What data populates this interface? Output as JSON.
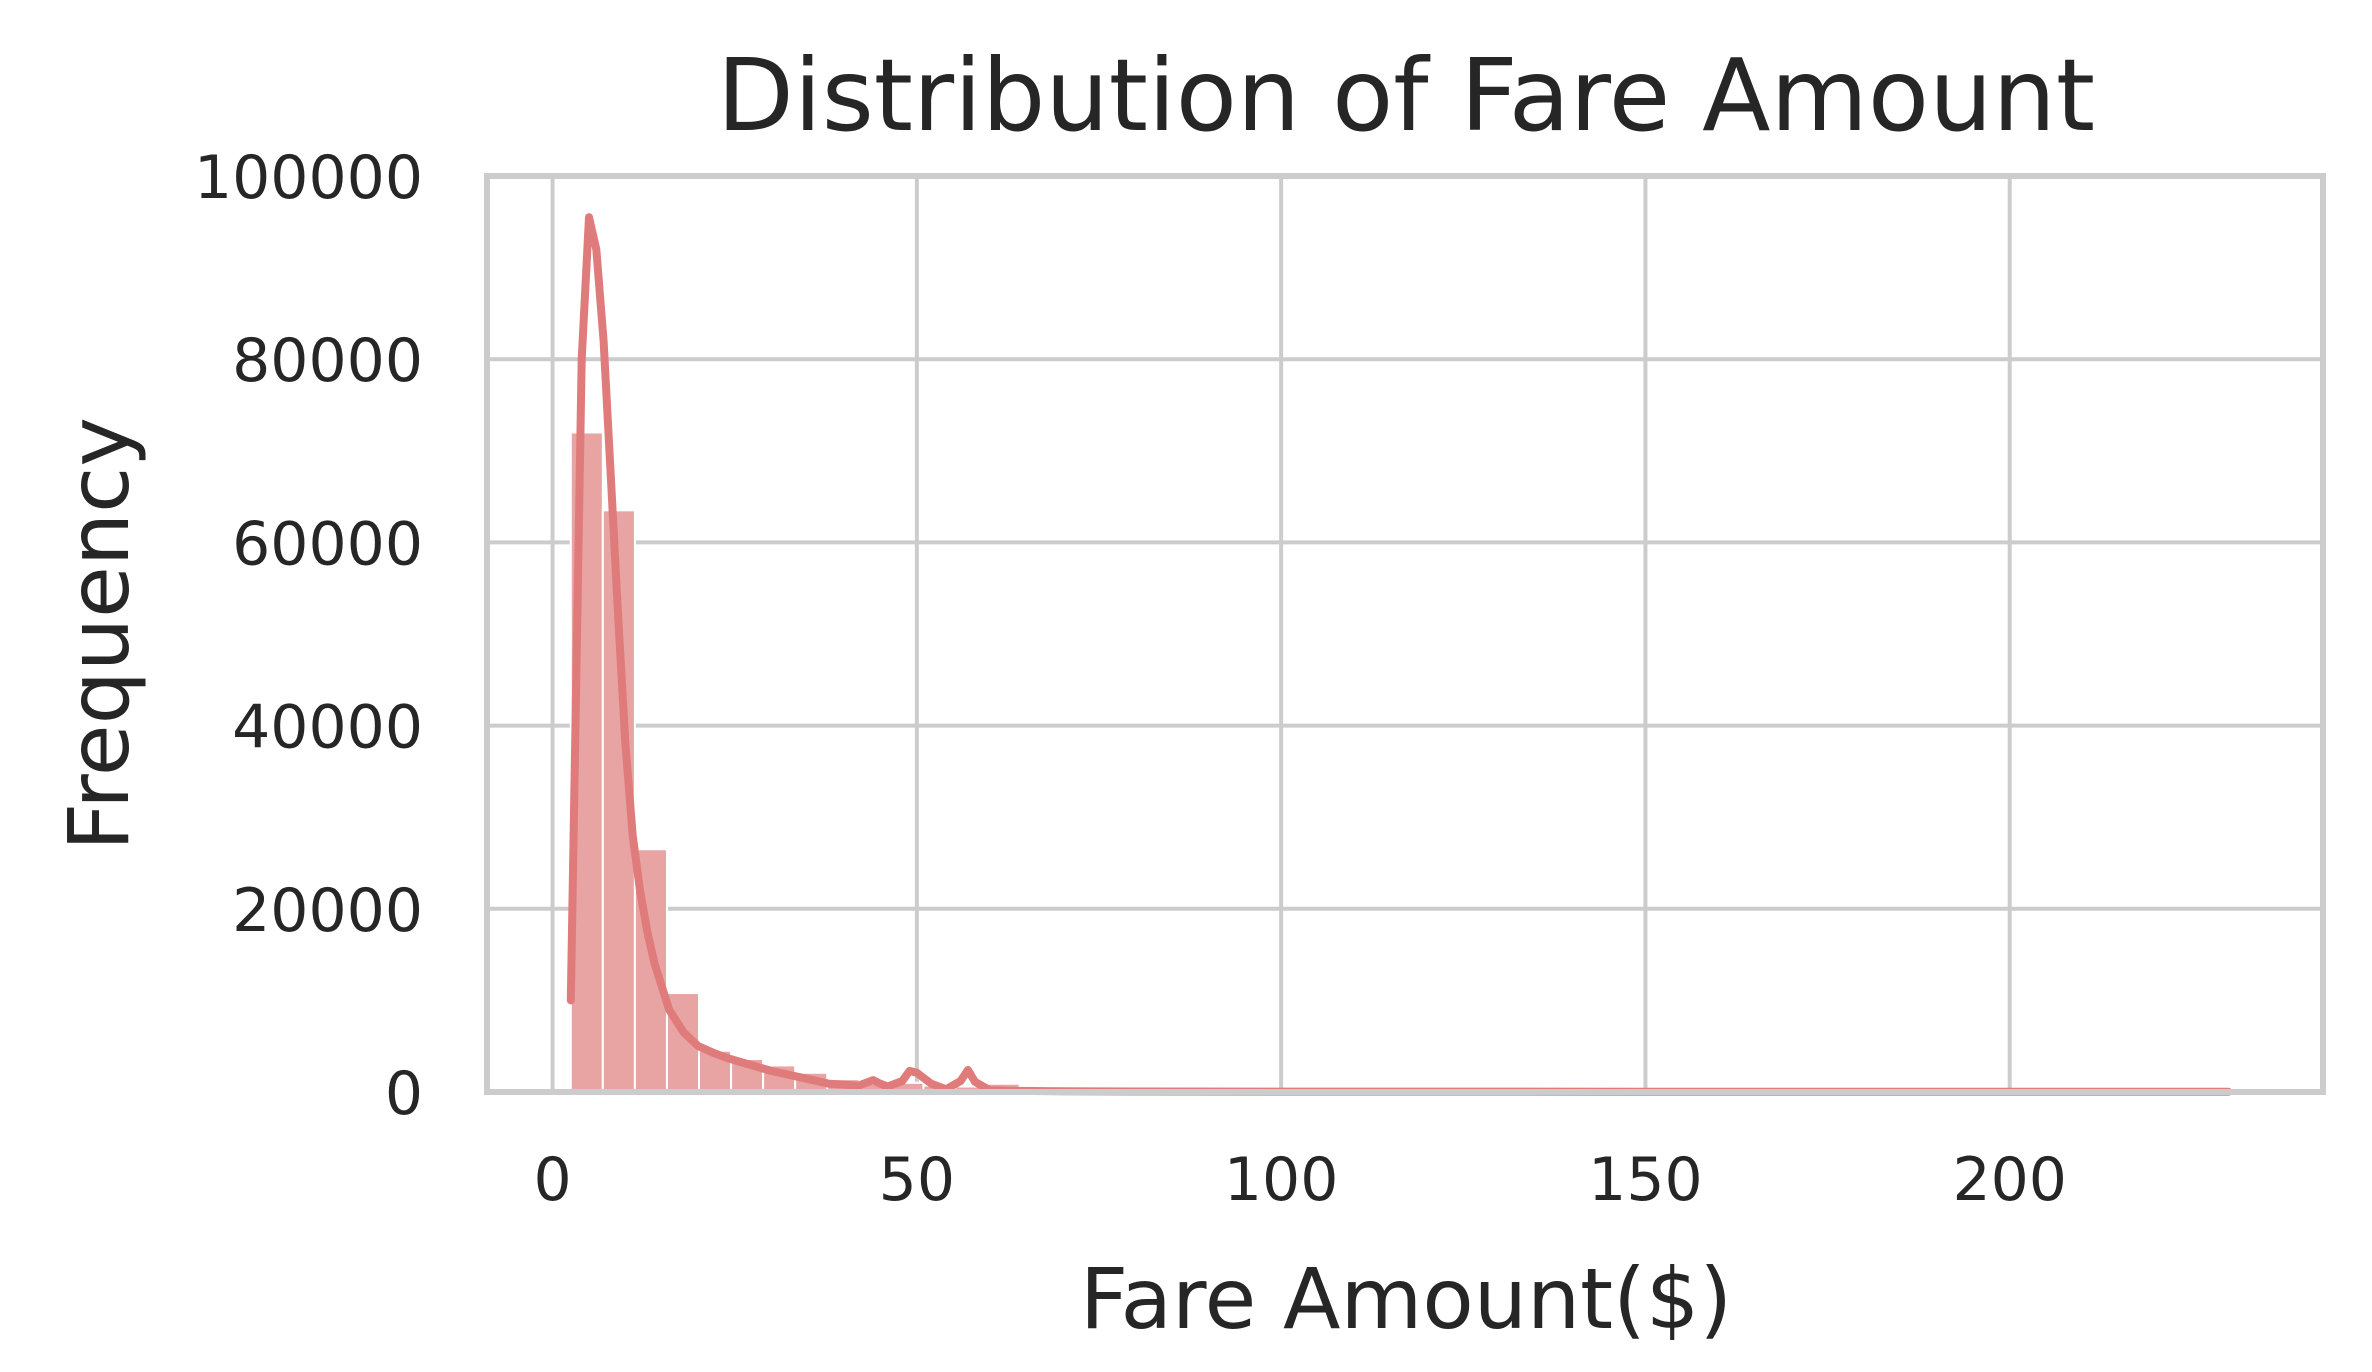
{
  "chart_data": {
    "type": "bar",
    "title": "Distribution of Fare Amount",
    "xlabel": "Fare Amount($)",
    "ylabel": "Frequency",
    "xlim": [
      -9,
      243
    ],
    "ylim": [
      0,
      100000
    ],
    "xticks": [
      0,
      50,
      100,
      150,
      200
    ],
    "yticks": [
      0,
      20000,
      40000,
      60000,
      80000,
      100000
    ],
    "grid": true,
    "colors": {
      "bar": "#e8a3a3",
      "kde": "#e07b7b"
    },
    "histogram": {
      "bin_width": 4.4,
      "bin_start": 2.5,
      "counts": [
        72000,
        63500,
        26500,
        10800,
        4500,
        3600,
        2900,
        2100,
        1400,
        900,
        1000,
        700,
        600,
        900,
        200,
        150,
        120,
        100,
        90,
        80,
        70,
        60,
        55,
        50,
        45,
        40,
        40,
        35,
        30,
        30,
        25,
        25,
        20,
        20,
        20,
        18,
        18,
        15,
        15,
        15,
        12,
        12,
        10,
        10,
        10,
        10,
        10,
        10,
        10,
        10,
        10,
        10
      ]
    },
    "kde": {
      "x": [
        2.5,
        4,
        5,
        6,
        7,
        8,
        9,
        10,
        11,
        12,
        13,
        14,
        16,
        18,
        20,
        22,
        24,
        27,
        30,
        34,
        38,
        42,
        44,
        45,
        46,
        48,
        49,
        50,
        52,
        54,
        56,
        57,
        58,
        60,
        64,
        70,
        80,
        100,
        150,
        200,
        230
      ],
      "y": [
        10000,
        80000,
        95500,
        92000,
        82000,
        67000,
        52000,
        38000,
        28000,
        22000,
        17500,
        14000,
        9000,
        6500,
        5000,
        4300,
        3700,
        3000,
        2300,
        1600,
        900,
        700,
        1300,
        900,
        600,
        1200,
        2300,
        2100,
        900,
        300,
        1200,
        2400,
        1100,
        200,
        120,
        80,
        60,
        40,
        30,
        20,
        20
      ]
    }
  }
}
